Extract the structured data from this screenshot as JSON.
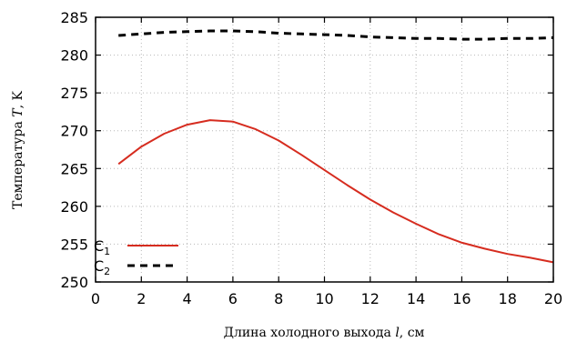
{
  "chart_data": {
    "type": "line",
    "xlabel_prefix": "Длина холодного выхода",
    "xlabel_var": "l",
    "xlabel_unit": ", см",
    "ylabel_prefix": "Температура",
    "ylabel_var": "T",
    "ylabel_unit": ", K",
    "xlim": [
      0,
      20
    ],
    "ylim": [
      250,
      285
    ],
    "xticks": [
      0,
      2,
      4,
      6,
      8,
      10,
      12,
      14,
      16,
      18,
      20
    ],
    "yticks": [
      250,
      255,
      260,
      265,
      270,
      275,
      280,
      285
    ],
    "grid": true,
    "legend_position": "bottom-left",
    "series": [
      {
        "name_base": "C",
        "name_sub": "1",
        "color": "#d62c1f",
        "style": "solid",
        "x": [
          1,
          2,
          3,
          4,
          5,
          6,
          7,
          8,
          9,
          10,
          11,
          12,
          13,
          14,
          15,
          16,
          17,
          18,
          19,
          20
        ],
        "y": [
          265.6,
          267.9,
          269.6,
          270.8,
          271.4,
          271.2,
          270.2,
          268.7,
          266.8,
          264.8,
          262.8,
          260.9,
          259.2,
          257.7,
          256.3,
          255.2,
          254.4,
          253.7,
          253.2,
          252.6
        ]
      },
      {
        "name_base": "C",
        "name_sub": "2",
        "color": "#000000",
        "style": "dashed",
        "x": [
          1,
          2,
          3,
          4,
          5,
          6,
          7,
          8,
          9,
          10,
          11,
          12,
          13,
          14,
          15,
          16,
          17,
          18,
          19,
          20
        ],
        "y": [
          282.6,
          282.8,
          283.0,
          283.1,
          283.2,
          283.2,
          283.1,
          282.9,
          282.8,
          282.7,
          282.6,
          282.4,
          282.3,
          282.2,
          282.2,
          282.1,
          282.1,
          282.2,
          282.2,
          282.3
        ]
      }
    ]
  }
}
